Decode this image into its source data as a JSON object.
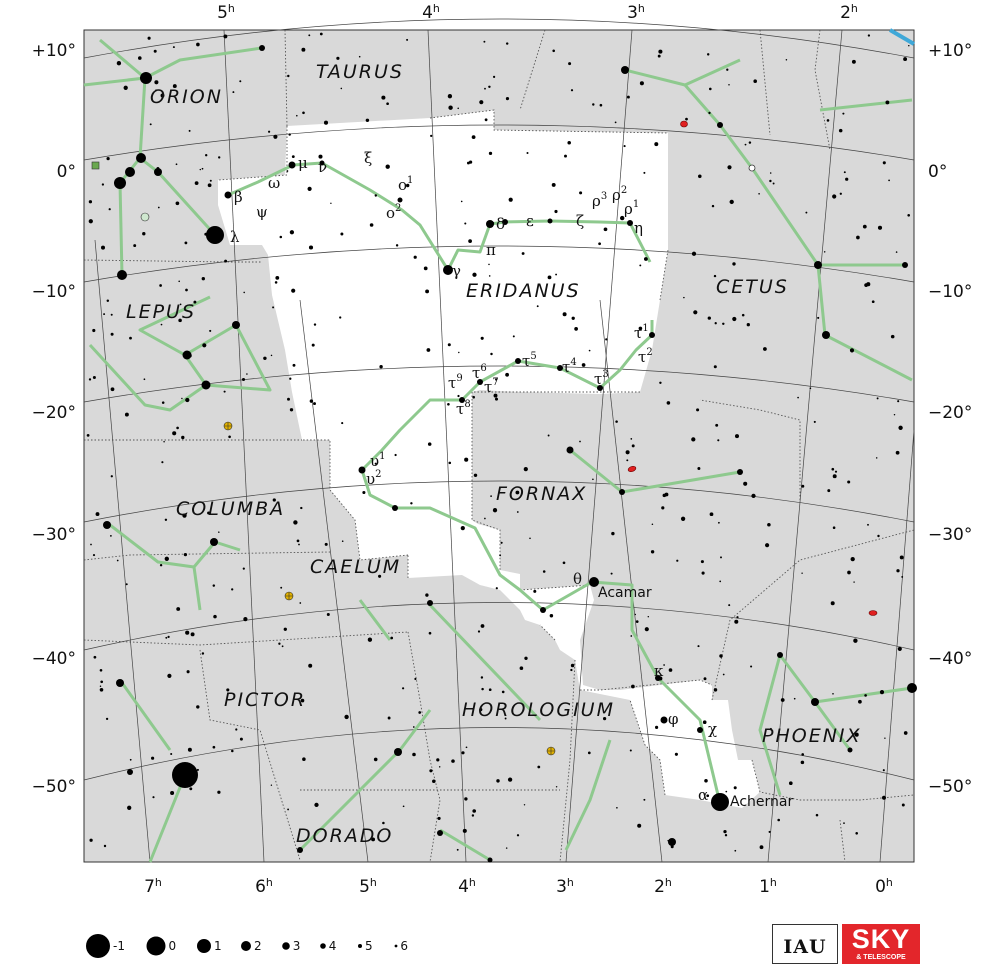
{
  "ra_labels_top": [
    {
      "text": "5",
      "unit": "h"
    },
    {
      "text": "4",
      "unit": "h"
    },
    {
      "text": "3",
      "unit": "h"
    },
    {
      "text": "2",
      "unit": "h"
    }
  ],
  "ra_labels_bottom": [
    {
      "text": "7",
      "unit": "h"
    },
    {
      "text": "6",
      "unit": "h"
    },
    {
      "text": "5",
      "unit": "h"
    },
    {
      "text": "4",
      "unit": "h"
    },
    {
      "text": "3",
      "unit": "h"
    },
    {
      "text": "2",
      "unit": "h"
    },
    {
      "text": "1",
      "unit": "h"
    },
    {
      "text": "0",
      "unit": "h"
    }
  ],
  "dec_labels": [
    "+10°",
    "0°",
    "−10°",
    "−20°",
    "−30°",
    "−40°",
    "−50°"
  ],
  "constellations": [
    "TAURUS",
    "ORION",
    "ERIDANUS",
    "CETUS",
    "LEPUS",
    "FORNAX",
    "COLUMBA",
    "CAELUM",
    "PICTOR",
    "HOROLOGIUM",
    "PHOENIX",
    "DORADO"
  ],
  "greek_labels": [
    {
      "id": "mu",
      "letter": "μ",
      "sup": ""
    },
    {
      "id": "nu",
      "letter": "ν",
      "sup": ""
    },
    {
      "id": "xi",
      "letter": "ξ",
      "sup": ""
    },
    {
      "id": "omega",
      "letter": "ω",
      "sup": ""
    },
    {
      "id": "beta",
      "letter": "β",
      "sup": ""
    },
    {
      "id": "psi",
      "letter": "ψ",
      "sup": ""
    },
    {
      "id": "lambda",
      "letter": "λ",
      "sup": ""
    },
    {
      "id": "omicron1",
      "letter": "ο",
      "sup": "1"
    },
    {
      "id": "omicron2",
      "letter": "ο",
      "sup": "2"
    },
    {
      "id": "gamma",
      "letter": "γ",
      "sup": ""
    },
    {
      "id": "pi",
      "letter": "π",
      "sup": ""
    },
    {
      "id": "delta",
      "letter": "δ",
      "sup": ""
    },
    {
      "id": "epsilon",
      "letter": "ε",
      "sup": ""
    },
    {
      "id": "zeta",
      "letter": "ζ",
      "sup": ""
    },
    {
      "id": "rho3",
      "letter": "ρ",
      "sup": "3"
    },
    {
      "id": "rho2",
      "letter": "ρ",
      "sup": "2"
    },
    {
      "id": "rho1",
      "letter": "ρ",
      "sup": "1"
    },
    {
      "id": "eta",
      "letter": "η",
      "sup": ""
    },
    {
      "id": "tau1",
      "letter": "τ",
      "sup": "1"
    },
    {
      "id": "tau2",
      "letter": "τ",
      "sup": "2"
    },
    {
      "id": "tau3",
      "letter": "τ",
      "sup": "3"
    },
    {
      "id": "tau4",
      "letter": "τ",
      "sup": "4"
    },
    {
      "id": "tau5",
      "letter": "τ",
      "sup": "5"
    },
    {
      "id": "tau6",
      "letter": "τ",
      "sup": "6"
    },
    {
      "id": "tau7",
      "letter": "τ",
      "sup": "7"
    },
    {
      "id": "tau8",
      "letter": "τ",
      "sup": "8"
    },
    {
      "id": "tau9",
      "letter": "τ",
      "sup": "9"
    },
    {
      "id": "upsilon1",
      "letter": "υ",
      "sup": "1"
    },
    {
      "id": "upsilon2",
      "letter": "υ",
      "sup": "2"
    },
    {
      "id": "theta",
      "letter": "θ",
      "sup": ""
    },
    {
      "id": "kappa",
      "letter": "κ",
      "sup": ""
    },
    {
      "id": "phi",
      "letter": "φ",
      "sup": ""
    },
    {
      "id": "chi",
      "letter": "χ",
      "sup": ""
    },
    {
      "id": "alpha",
      "letter": "α",
      "sup": ""
    }
  ],
  "star_names": [
    "Acamar",
    "Achernar"
  ],
  "magnitude_legend": [
    "-1",
    "0",
    "1",
    "2",
    "3",
    "4",
    "5",
    "6"
  ],
  "logos": {
    "iau": "IAU",
    "sky": "SKY",
    "sky_sub": "& TELESCOPE"
  },
  "colors": {
    "background": "#d9d9d9",
    "eridanus_area": "#ffffff",
    "stick_figure": "#8ec98e",
    "grid": "#555555",
    "star": "#000000",
    "galaxy_red": "#e02020",
    "cluster_yellow": "#e0b000",
    "ecliptic_blue": "#3fa8d8"
  }
}
